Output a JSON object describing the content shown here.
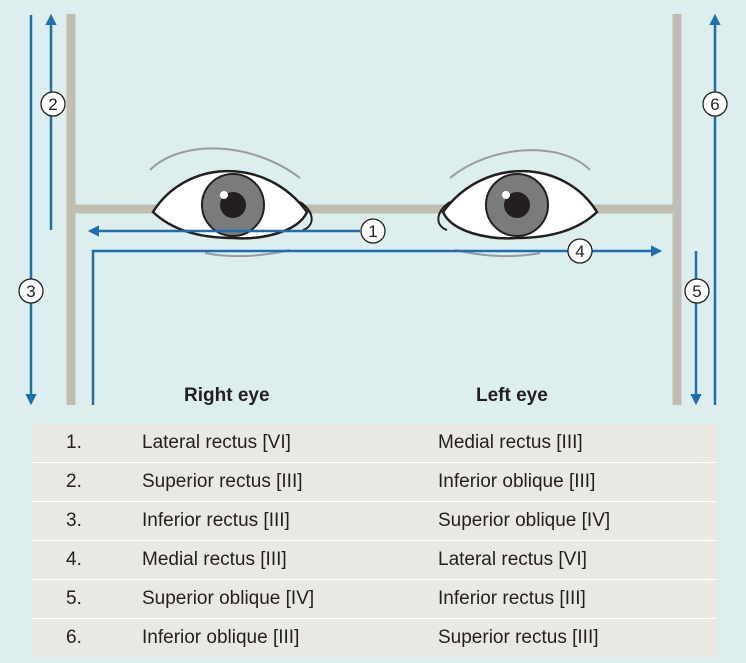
{
  "labels": {
    "right_eye": "Right eye",
    "left_eye": "Left eye"
  },
  "markers": [
    "1",
    "2",
    "3",
    "4",
    "5",
    "6"
  ],
  "table": {
    "rows": [
      {
        "num": "1.",
        "right": "Lateral rectus [VI]",
        "left": "Medial rectus [III]"
      },
      {
        "num": "2.",
        "right": "Superior rectus [III]",
        "left": "Inferior oblique [III]"
      },
      {
        "num": "3.",
        "right": "Inferior rectus [III]",
        "left": "Superior oblique [IV]"
      },
      {
        "num": "4.",
        "right": "Medial rectus [III]",
        "left": "Lateral rectus [VI]"
      },
      {
        "num": "5.",
        "right": "Superior oblique [IV]",
        "left": "Inferior rectus [III]"
      },
      {
        "num": "6.",
        "right": "Inferior oblique [III]",
        "left": "Superior rectus [III]"
      }
    ]
  },
  "colors": {
    "background": "#dcefee",
    "arrow": "#1f6fb0",
    "frame": "#bfbeb1",
    "iris": "#7a7b7d",
    "table_row": "#e9e8e3"
  }
}
